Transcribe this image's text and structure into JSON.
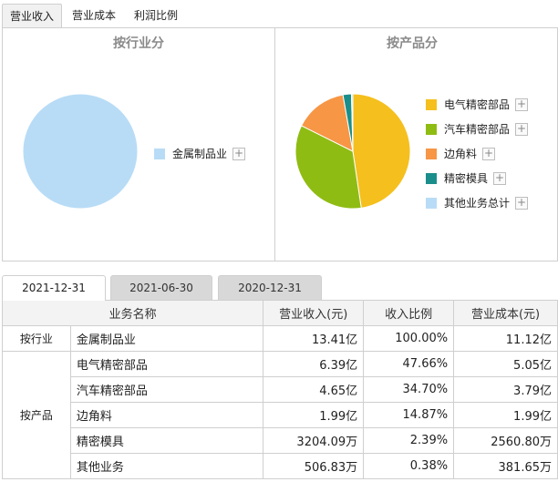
{
  "top_tabs": [
    {
      "label": "营业收入",
      "active": true
    },
    {
      "label": "营业成本",
      "active": false
    },
    {
      "label": "利润比例",
      "active": false
    }
  ],
  "panels": {
    "left_title": "按行业分",
    "right_title": "按产品分"
  },
  "chart_data": [
    {
      "type": "pie",
      "title": "按行业分",
      "categories": [
        "金属制品业"
      ],
      "values": [
        100.0
      ],
      "colors": [
        "#b8dcf6"
      ],
      "legend_position": "right"
    },
    {
      "type": "pie",
      "title": "按产品分",
      "categories": [
        "电气精密部品",
        "汽车精密部品",
        "边角料",
        "精密模具",
        "其他业务总计"
      ],
      "values": [
        47.66,
        34.7,
        14.87,
        2.39,
        0.38
      ],
      "colors": [
        "#f5bf1d",
        "#8fbc13",
        "#f79645",
        "#1a8e8a",
        "#b8dcf6"
      ],
      "legend_position": "right"
    }
  ],
  "legend_plus_symbol": "+",
  "period_tabs": [
    {
      "label": "2021-12-31",
      "active": true
    },
    {
      "label": "2021-06-30",
      "active": false
    },
    {
      "label": "2020-12-31",
      "active": false
    }
  ],
  "table": {
    "headers": [
      "业务名称",
      "营业收入(元)",
      "收入比例",
      "营业成本(元)"
    ],
    "groups": [
      {
        "label": "按行业",
        "rows": [
          {
            "name": "金属制品业",
            "revenue": "13.41亿",
            "ratio": "100.00%",
            "cost": "11.12亿"
          }
        ]
      },
      {
        "label": "按产品",
        "rows": [
          {
            "name": "电气精密部品",
            "revenue": "6.39亿",
            "ratio": "47.66%",
            "cost": "5.05亿"
          },
          {
            "name": "汽车精密部品",
            "revenue": "4.65亿",
            "ratio": "34.70%",
            "cost": "3.79亿"
          },
          {
            "name": "边角料",
            "revenue": "1.99亿",
            "ratio": "14.87%",
            "cost": "1.99亿"
          },
          {
            "name": "精密模具",
            "revenue": "3204.09万",
            "ratio": "2.39%",
            "cost": "2560.80万"
          },
          {
            "name": "其他业务",
            "revenue": "506.83万",
            "ratio": "0.38%",
            "cost": "381.65万"
          }
        ]
      }
    ]
  }
}
